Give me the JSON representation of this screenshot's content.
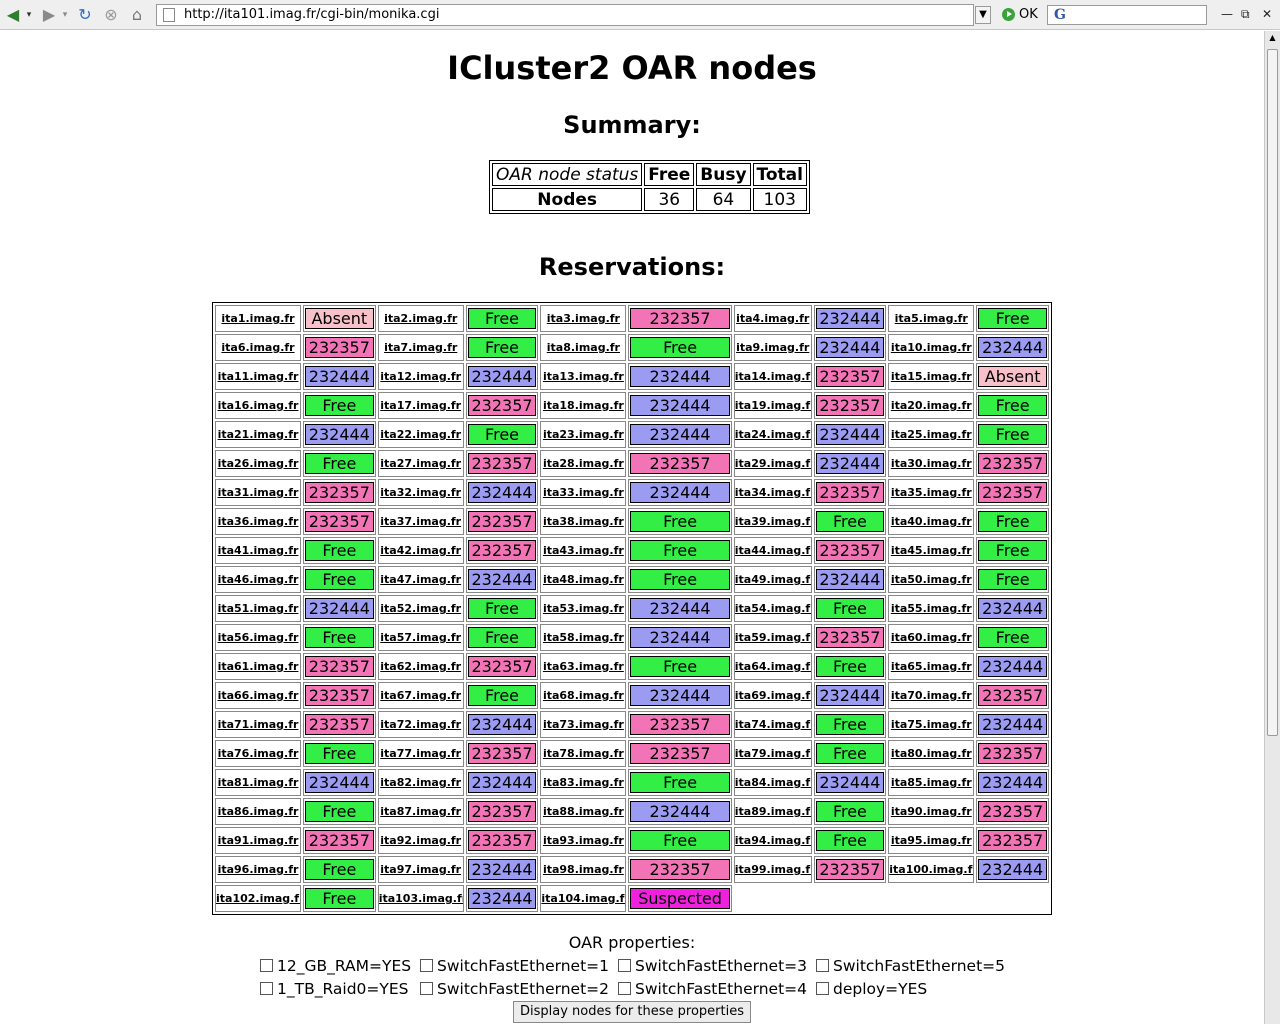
{
  "browser": {
    "url": "http://ita101.imag.fr/cgi-bin/monika.cgi",
    "go_label": "OK",
    "search_placeholder": ""
  },
  "page": {
    "title": "ICluster2 OAR nodes",
    "summary_heading": "Summary:",
    "reservations_heading": "Reservations:",
    "properties_heading": "OAR properties:",
    "submit_label": "Display nodes for these properties"
  },
  "summary": {
    "header": [
      "OAR node status",
      "Free",
      "Busy",
      "Total"
    ],
    "row_label": "Nodes",
    "values": [
      "36",
      "64",
      "103"
    ]
  },
  "colors": {
    "Free": "#33ee44",
    "232357": "#f274b6",
    "232444": "#9b9bf2",
    "Absent": "#f8c0c8",
    "Suspected": "#ee22dd"
  },
  "nodes": [
    [
      "ita1.imag.fr",
      "Absent"
    ],
    [
      "ita2.imag.fr",
      "Free"
    ],
    [
      "ita3.imag.fr",
      "232357"
    ],
    [
      "ita4.imag.fr",
      "232444"
    ],
    [
      "ita5.imag.fr",
      "Free"
    ],
    [
      "ita6.imag.fr",
      "232357"
    ],
    [
      "ita7.imag.fr",
      "Free"
    ],
    [
      "ita8.imag.fr",
      "Free"
    ],
    [
      "ita9.imag.fr",
      "232444"
    ],
    [
      "ita10.imag.fr",
      "232444"
    ],
    [
      "ita11.imag.fr",
      "232444"
    ],
    [
      "ita12.imag.fr",
      "232444"
    ],
    [
      "ita13.imag.fr",
      "232444"
    ],
    [
      "ita14.imag.fr",
      "232357"
    ],
    [
      "ita15.imag.fr",
      "Absent"
    ],
    [
      "ita16.imag.fr",
      "Free"
    ],
    [
      "ita17.imag.fr",
      "232357"
    ],
    [
      "ita18.imag.fr",
      "232444"
    ],
    [
      "ita19.imag.fr",
      "232357"
    ],
    [
      "ita20.imag.fr",
      "Free"
    ],
    [
      "ita21.imag.fr",
      "232444"
    ],
    [
      "ita22.imag.fr",
      "Free"
    ],
    [
      "ita23.imag.fr",
      "232444"
    ],
    [
      "ita24.imag.fr",
      "232444"
    ],
    [
      "ita25.imag.fr",
      "Free"
    ],
    [
      "ita26.imag.fr",
      "Free"
    ],
    [
      "ita27.imag.fr",
      "232357"
    ],
    [
      "ita28.imag.fr",
      "232357"
    ],
    [
      "ita29.imag.fr",
      "232444"
    ],
    [
      "ita30.imag.fr",
      "232357"
    ],
    [
      "ita31.imag.fr",
      "232357"
    ],
    [
      "ita32.imag.fr",
      "232444"
    ],
    [
      "ita33.imag.fr",
      "232444"
    ],
    [
      "ita34.imag.fr",
      "232357"
    ],
    [
      "ita35.imag.fr",
      "232357"
    ],
    [
      "ita36.imag.fr",
      "232357"
    ],
    [
      "ita37.imag.fr",
      "232357"
    ],
    [
      "ita38.imag.fr",
      "Free"
    ],
    [
      "ita39.imag.fr",
      "Free"
    ],
    [
      "ita40.imag.fr",
      "Free"
    ],
    [
      "ita41.imag.fr",
      "Free"
    ],
    [
      "ita42.imag.fr",
      "232357"
    ],
    [
      "ita43.imag.fr",
      "Free"
    ],
    [
      "ita44.imag.fr",
      "232357"
    ],
    [
      "ita45.imag.fr",
      "Free"
    ],
    [
      "ita46.imag.fr",
      "Free"
    ],
    [
      "ita47.imag.fr",
      "232444"
    ],
    [
      "ita48.imag.fr",
      "Free"
    ],
    [
      "ita49.imag.fr",
      "232444"
    ],
    [
      "ita50.imag.fr",
      "Free"
    ],
    [
      "ita51.imag.fr",
      "232444"
    ],
    [
      "ita52.imag.fr",
      "Free"
    ],
    [
      "ita53.imag.fr",
      "232444"
    ],
    [
      "ita54.imag.fr",
      "Free"
    ],
    [
      "ita55.imag.fr",
      "232444"
    ],
    [
      "ita56.imag.fr",
      "Free"
    ],
    [
      "ita57.imag.fr",
      "Free"
    ],
    [
      "ita58.imag.fr",
      "232444"
    ],
    [
      "ita59.imag.fr",
      "232357"
    ],
    [
      "ita60.imag.fr",
      "Free"
    ],
    [
      "ita61.imag.fr",
      "232357"
    ],
    [
      "ita62.imag.fr",
      "232357"
    ],
    [
      "ita63.imag.fr",
      "Free"
    ],
    [
      "ita64.imag.fr",
      "Free"
    ],
    [
      "ita65.imag.fr",
      "232444"
    ],
    [
      "ita66.imag.fr",
      "232357"
    ],
    [
      "ita67.imag.fr",
      "Free"
    ],
    [
      "ita68.imag.fr",
      "232444"
    ],
    [
      "ita69.imag.fr",
      "232444"
    ],
    [
      "ita70.imag.fr",
      "232357"
    ],
    [
      "ita71.imag.fr",
      "232357"
    ],
    [
      "ita72.imag.fr",
      "232444"
    ],
    [
      "ita73.imag.fr",
      "232357"
    ],
    [
      "ita74.imag.fr",
      "Free"
    ],
    [
      "ita75.imag.fr",
      "232444"
    ],
    [
      "ita76.imag.fr",
      "Free"
    ],
    [
      "ita77.imag.fr",
      "232357"
    ],
    [
      "ita78.imag.fr",
      "232357"
    ],
    [
      "ita79.imag.fr",
      "Free"
    ],
    [
      "ita80.imag.fr",
      "232357"
    ],
    [
      "ita81.imag.fr",
      "232444"
    ],
    [
      "ita82.imag.fr",
      "232444"
    ],
    [
      "ita83.imag.fr",
      "Free"
    ],
    [
      "ita84.imag.fr",
      "232444"
    ],
    [
      "ita85.imag.fr",
      "232444"
    ],
    [
      "ita86.imag.fr",
      "Free"
    ],
    [
      "ita87.imag.fr",
      "232357"
    ],
    [
      "ita88.imag.fr",
      "232444"
    ],
    [
      "ita89.imag.fr",
      "Free"
    ],
    [
      "ita90.imag.fr",
      "232357"
    ],
    [
      "ita91.imag.fr",
      "232357"
    ],
    [
      "ita92.imag.fr",
      "232357"
    ],
    [
      "ita93.imag.fr",
      "Free"
    ],
    [
      "ita94.imag.fr",
      "Free"
    ],
    [
      "ita95.imag.fr",
      "232357"
    ],
    [
      "ita96.imag.fr",
      "Free"
    ],
    [
      "ita97.imag.fr",
      "232444"
    ],
    [
      "ita98.imag.fr",
      "232357"
    ],
    [
      "ita99.imag.fr",
      "232357"
    ],
    [
      "ita100.imag.fr",
      "232444"
    ],
    [
      "ita102.imag.fr",
      "Free"
    ],
    [
      "ita103.imag.fr",
      "232444"
    ],
    [
      "ita104.imag.fr",
      "Suspected"
    ]
  ],
  "properties": [
    {
      "label": "12_GB_RAM=YES",
      "checked": false
    },
    {
      "label": "SwitchFastEthernet=1",
      "checked": false
    },
    {
      "label": "SwitchFastEthernet=3",
      "checked": false
    },
    {
      "label": "SwitchFastEthernet=5",
      "checked": false
    },
    {
      "label": "1_TB_Raid0=YES",
      "checked": false
    },
    {
      "label": "SwitchFastEthernet=2",
      "checked": false
    },
    {
      "label": "SwitchFastEthernet=4",
      "checked": false
    },
    {
      "label": "deploy=YES",
      "checked": false
    }
  ]
}
